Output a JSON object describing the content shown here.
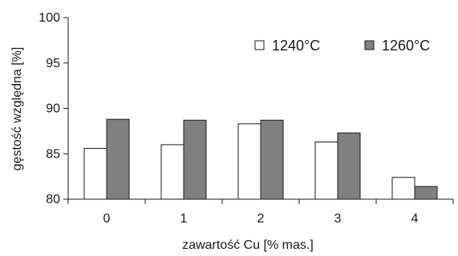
{
  "chart_data": {
    "type": "bar",
    "title": "",
    "xlabel": "zawartość Cu [% mas.]",
    "ylabel": "gęstość względna [%]",
    "categories": [
      "0",
      "1",
      "2",
      "3",
      "4"
    ],
    "ylim": [
      80,
      100
    ],
    "yticks": [
      80,
      85,
      90,
      95,
      100
    ],
    "grid": false,
    "legend": "top-right",
    "series": [
      {
        "name": "1240°C",
        "color": "#ffffff",
        "values": [
          85.6,
          86.0,
          88.3,
          86.3,
          82.4
        ]
      },
      {
        "name": "1260°C",
        "color": "#808080",
        "values": [
          88.8,
          88.7,
          88.7,
          87.3,
          81.4
        ]
      }
    ]
  }
}
